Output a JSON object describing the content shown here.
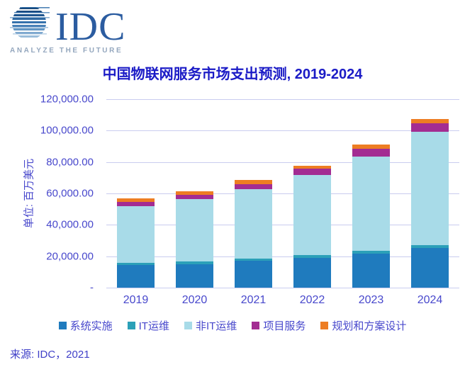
{
  "logo": {
    "brand": "IDC",
    "tagline": "ANALYZE THE FUTURE"
  },
  "source": "来源: IDC，2021",
  "colors": {
    "gridline": "#C9CCEF",
    "axis_text": "#4848CC",
    "title_text": "#1B1BC6",
    "logo_text": "#2B5CA0",
    "logo_tagline": "#94A7BE"
  },
  "chart_data": {
    "type": "bar",
    "stacked": true,
    "title": "中国物联网服务市场支出预测, 2019-2024",
    "y_unit": "单位: 百万美元",
    "xlabel": "",
    "ylabel": "单位: 百万美元",
    "ylim": [
      0,
      120000
    ],
    "y_ticks": [
      "120,000.00",
      "100,000.00",
      "80,000.00",
      "60,000.00",
      "40,000.00",
      "20,000.00",
      "-"
    ],
    "grid": "horizontal",
    "legend_position": "bottom",
    "categories": [
      "2019",
      "2020",
      "2021",
      "2022",
      "2023",
      "2024"
    ],
    "series": [
      {
        "name": "系统实施",
        "color": "#1F7BBE",
        "values": [
          14400,
          15100,
          17000,
          19000,
          21600,
          25100
        ]
      },
      {
        "name": "IT运维",
        "color": "#2BA0B8",
        "values": [
          1300,
          1500,
          1500,
          1700,
          1900,
          2000
        ]
      },
      {
        "name": "非IT运维",
        "color": "#A8DBE8",
        "values": [
          36300,
          39600,
          44200,
          51100,
          59900,
          72300
        ]
      },
      {
        "name": "项目服务",
        "color": "#A32C92",
        "values": [
          2500,
          3000,
          3400,
          3800,
          5000,
          5300
        ]
      },
      {
        "name": "规划和方案设计",
        "color": "#ED7D23",
        "values": [
          2300,
          2300,
          2400,
          2200,
          2700,
          2700
        ]
      }
    ],
    "totals": [
      56800,
      61500,
      68500,
      77800,
      91100,
      107400
    ]
  }
}
